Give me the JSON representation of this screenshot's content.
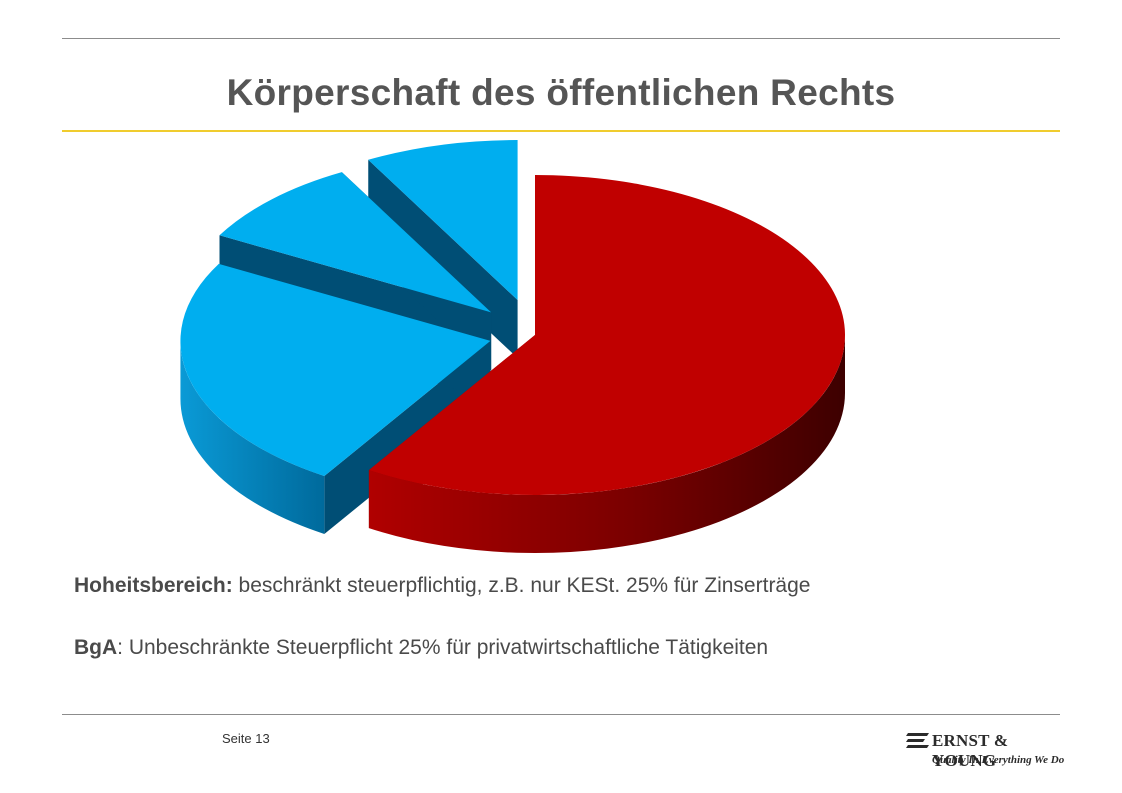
{
  "slide": {
    "title": "Körperschaft des öffentlichen Rechts",
    "line1_bold": "Hoheitsbereich:",
    "line1_rest": " beschränkt steuerpflichtig, z.B. nur KESt. 25% für Zinserträge",
    "line2_bold": "BgA",
    "line2_rest": ": Unbeschränkte  Steuerpflicht 25% für privatwirtschaftliche Tätigkeiten",
    "page_label": "Seite 13"
  },
  "logo": {
    "name": "ERNST & YOUNG",
    "tagline": "Quality In Everything We Do"
  },
  "colors": {
    "title_rule": "#f0cc2e",
    "slice_red": "#c00000",
    "slice_blue": "#00aeef"
  },
  "chart_data": {
    "type": "pie",
    "style": "3d-exploded",
    "title": "",
    "slices": [
      {
        "value": 59,
        "color": "#c00000"
      },
      {
        "value": 24,
        "color": "#00aeef"
      },
      {
        "value": 9,
        "color": "#00aeef"
      },
      {
        "value": 8,
        "color": "#00aeef"
      }
    ],
    "legend": "none",
    "data_labels": "none"
  }
}
